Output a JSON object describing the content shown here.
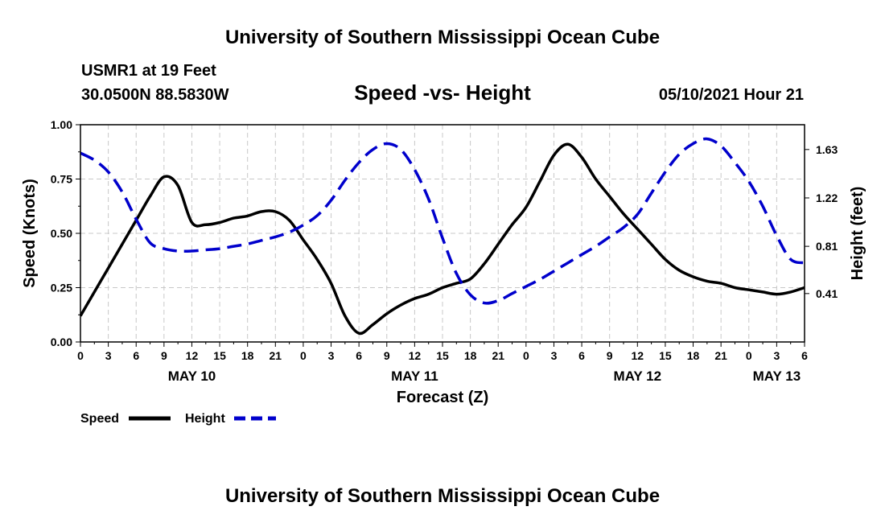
{
  "page": {
    "title_top": "University of Southern Mississippi Ocean Cube",
    "title_bottom": "University of Southern Mississippi Ocean Cube",
    "station": "USMR1 at 19 Feet",
    "coords": "30.0500N  88.5830W",
    "product": "Speed -vs- Height",
    "issued": "05/10/2021 Hour 21"
  },
  "chart_data": {
    "type": "line",
    "title": "Speed -vs- Height",
    "xlabel": "Forecast (Z)",
    "ylabel_left": "Speed (Knots)",
    "ylabel_right": "Height (feet)",
    "x_hours": [
      0,
      1.5,
      3,
      4.5,
      6,
      7.5,
      9,
      10.5,
      12,
      13.5,
      15,
      16.5,
      18,
      19.5,
      21,
      22.5,
      24,
      25.5,
      27,
      28.5,
      30,
      31.5,
      33,
      34.5,
      36,
      37.5,
      39,
      40.5,
      42,
      43.5,
      45,
      46.5,
      48,
      49.5,
      51,
      52.5,
      54,
      55.5,
      57,
      58.5,
      60,
      61.5,
      63,
      64.5,
      66,
      67.5,
      69,
      70.5,
      72,
      73.5,
      75,
      76.5,
      78
    ],
    "x_ticks": [
      0,
      3,
      6,
      9,
      12,
      15,
      18,
      21,
      24,
      27,
      30,
      33,
      36,
      39,
      42,
      45,
      48,
      51,
      54,
      57,
      60,
      63,
      66,
      69,
      72,
      75,
      78
    ],
    "x_tick_labels": [
      "0",
      "3",
      "6",
      "9",
      "12",
      "15",
      "18",
      "21",
      "0",
      "3",
      "6",
      "9",
      "12",
      "15",
      "18",
      "21",
      "0",
      "3",
      "6",
      "9",
      "12",
      "15",
      "18",
      "21",
      "0",
      "3",
      "6"
    ],
    "day_labels": [
      {
        "label": "MAY 10",
        "hour": 12
      },
      {
        "label": "MAY 11",
        "hour": 36
      },
      {
        "label": "MAY 12",
        "hour": 60
      },
      {
        "label": "MAY 13",
        "hour": 75
      }
    ],
    "xlim": [
      0,
      78
    ],
    "ylim_left": [
      0,
      1.0
    ],
    "yticks_left": [
      0.0,
      0.25,
      0.5,
      0.75,
      1.0
    ],
    "ytick_labels_left": [
      "0.00",
      "0.25",
      "0.50",
      "0.75",
      "1.00"
    ],
    "ylim_right": [
      0.0,
      1.84
    ],
    "yticks_right": [
      0.41,
      0.81,
      1.22,
      1.63
    ],
    "ytick_labels_right": [
      "0.41",
      "0.81",
      "1.22",
      "1.63"
    ],
    "grid": true,
    "series": [
      {
        "name": "Speed",
        "axis": "left",
        "color": "#000000",
        "dashed": false,
        "values": [
          0.12,
          0.23,
          0.34,
          0.45,
          0.56,
          0.67,
          0.76,
          0.72,
          0.55,
          0.54,
          0.55,
          0.57,
          0.58,
          0.6,
          0.6,
          0.56,
          0.47,
          0.38,
          0.27,
          0.12,
          0.04,
          0.08,
          0.13,
          0.17,
          0.2,
          0.22,
          0.25,
          0.27,
          0.29,
          0.36,
          0.45,
          0.54,
          0.62,
          0.74,
          0.86,
          0.91,
          0.85,
          0.75,
          0.67,
          0.59,
          0.52,
          0.45,
          0.38,
          0.33,
          0.3,
          0.28,
          0.27,
          0.25,
          0.24,
          0.23,
          0.22,
          0.23,
          0.25
        ]
      },
      {
        "name": "Height",
        "axis": "right",
        "color": "#0000cc",
        "dashed": true,
        "values": [
          1.6,
          1.54,
          1.44,
          1.27,
          1.04,
          0.84,
          0.79,
          0.77,
          0.77,
          0.78,
          0.79,
          0.81,
          0.83,
          0.86,
          0.89,
          0.93,
          0.99,
          1.07,
          1.2,
          1.37,
          1.52,
          1.63,
          1.68,
          1.63,
          1.46,
          1.21,
          0.88,
          0.58,
          0.4,
          0.33,
          0.35,
          0.41,
          0.47,
          0.53,
          0.6,
          0.67,
          0.74,
          0.81,
          0.89,
          0.97,
          1.08,
          1.26,
          1.44,
          1.59,
          1.68,
          1.72,
          1.66,
          1.52,
          1.36,
          1.15,
          0.9,
          0.7,
          0.67
        ]
      }
    ],
    "legend": [
      {
        "label": "Speed",
        "color": "#000000",
        "dashed": false
      },
      {
        "label": "Height",
        "color": "#0000cc",
        "dashed": true
      }
    ]
  }
}
